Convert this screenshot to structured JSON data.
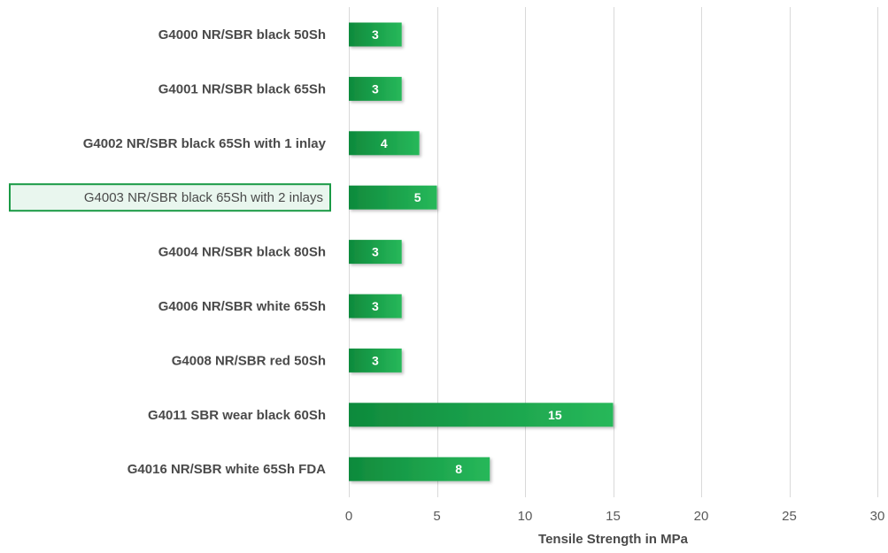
{
  "chart_data": {
    "type": "bar",
    "orientation": "horizontal",
    "categories": [
      "G4000 NR/SBR black 50Sh",
      "G4001 NR/SBR black 65Sh",
      "G4002 NR/SBR black 65Sh with 1 inlay",
      "G4003 NR/SBR black 65Sh with 2 inlays",
      "G4004 NR/SBR black 80Sh",
      "G4006 NR/SBR white 65Sh",
      "G4008 NR/SBR red 50Sh",
      "G4011 SBR wear black 60Sh",
      "G4016 NR/SBR white 65Sh FDA"
    ],
    "values": [
      3,
      3,
      4,
      5,
      3,
      3,
      3,
      15,
      8
    ],
    "data_labels": [
      "3",
      "3",
      "4",
      "5",
      "3",
      "3",
      "3",
      "15",
      "8"
    ],
    "highlighted_category": "G4003 NR/SBR black 65Sh with 2 inlays",
    "xlabel": "Tensile Strength in MPa",
    "ylabel": "",
    "xlim": [
      0,
      30
    ],
    "x_ticks": [
      0,
      5,
      10,
      15,
      20,
      25,
      30
    ],
    "x_tick_labels": [
      "0",
      "5",
      "10",
      "15",
      "20",
      "25",
      "30"
    ],
    "grid": "vertical",
    "colors": {
      "bar_dark": "#0f8a3c",
      "bar_light": "#27b85a",
      "highlight_border": "#1a9a45",
      "highlight_fill": "#e9f6ee",
      "grid": "#d9d9d9",
      "text": "#4a4a4a"
    }
  }
}
